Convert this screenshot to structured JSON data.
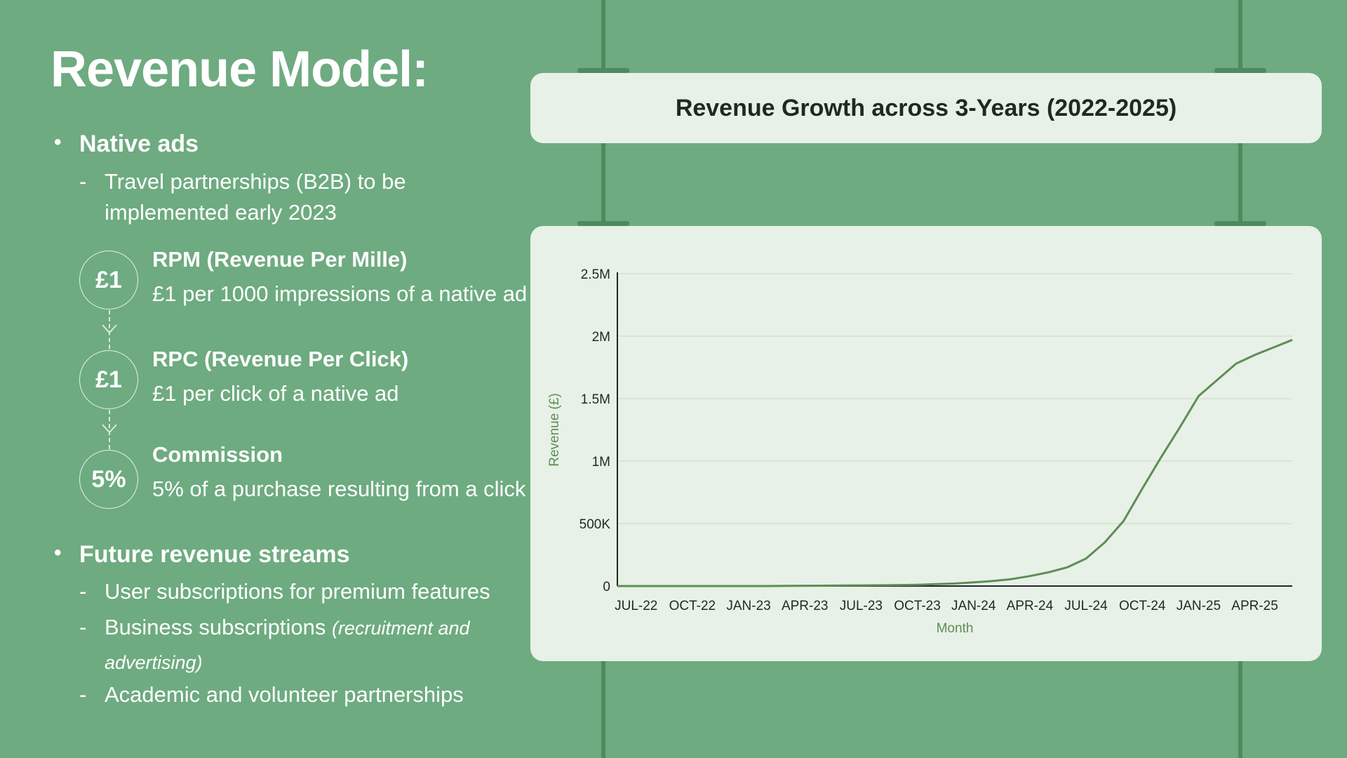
{
  "slide": {
    "title": "Revenue Model:",
    "native_ads": {
      "heading": "Native ads",
      "note_line1": "Travel partnerships (B2B) to be",
      "note_line2": "implemented early 2023"
    },
    "revenue_items": [
      {
        "badge": "£1",
        "heading": "RPM (Revenue Per Mille)",
        "text": "£1 per 1000 impressions of a native ad"
      },
      {
        "badge": "£1",
        "heading": "RPC (Revenue Per Click)",
        "text": "£1 per click of a native ad"
      },
      {
        "badge": "5%",
        "heading": "Commission",
        "text": "5% of a purchase resulting from a click"
      }
    ],
    "future": {
      "heading": "Future revenue streams",
      "items": [
        {
          "text": "User subscriptions for premium features"
        },
        {
          "text": "Business subscriptions",
          "note_line1": "(recruitment and",
          "note_line2": "advertising)"
        },
        {
          "text": "Academic and volunteer partnerships"
        }
      ]
    },
    "bullet_symbol": "•",
    "dash_symbol": "-"
  },
  "colors": {
    "background": "#6eab80",
    "panel": "#e7f1e7",
    "line": "#5e8d56",
    "axis_label": "#5e8d56"
  },
  "chart_data": {
    "type": "line",
    "title": "Revenue Growth across 3-Years (2022-2025)",
    "xlabel": "Month",
    "ylabel": "Revenue (£)",
    "ylim": [
      0,
      2500000
    ],
    "yticks": [
      0,
      500000,
      1000000,
      1500000,
      2000000,
      2500000
    ],
    "ytick_labels": [
      "0",
      "500K",
      "1M",
      "1.5M",
      "2M",
      "2.5M"
    ],
    "categories": [
      "JUL-22",
      "OCT-22",
      "JAN-23",
      "APR-23",
      "JUL-23",
      "OCT-23",
      "JAN-24",
      "APR-24",
      "JUL-24",
      "OCT-24",
      "JAN-25",
      "APR-25"
    ],
    "grid": true,
    "series": [
      {
        "x": [
          "JUN-22",
          "JUL-22",
          "AUG-22",
          "SEP-22",
          "OCT-22",
          "NOV-22",
          "DEC-22",
          "JAN-23",
          "FEB-23",
          "MAR-23",
          "APR-23",
          "MAY-23",
          "JUN-23",
          "JUL-23",
          "AUG-23",
          "SEP-23",
          "OCT-23",
          "NOV-23",
          "DEC-23",
          "JAN-24",
          "FEB-24",
          "MAR-24",
          "APR-24",
          "MAY-24",
          "JUN-24",
          "JUL-24",
          "AUG-24",
          "SEP-24",
          "OCT-24",
          "NOV-24",
          "DEC-24",
          "JAN-25",
          "FEB-25",
          "MAR-25",
          "APR-25",
          "MAY-25",
          "JUN-25"
        ],
        "values": [
          0,
          0,
          0,
          0,
          0,
          0,
          0,
          0,
          0,
          1000,
          2000,
          3000,
          4000,
          5000,
          6000,
          8000,
          10000,
          15000,
          20000,
          30000,
          40000,
          55000,
          80000,
          110000,
          150000,
          220000,
          350000,
          520000,
          780000,
          1030000,
          1270000,
          1520000,
          1650000,
          1780000,
          1850000,
          1910000,
          1970000
        ]
      }
    ]
  }
}
